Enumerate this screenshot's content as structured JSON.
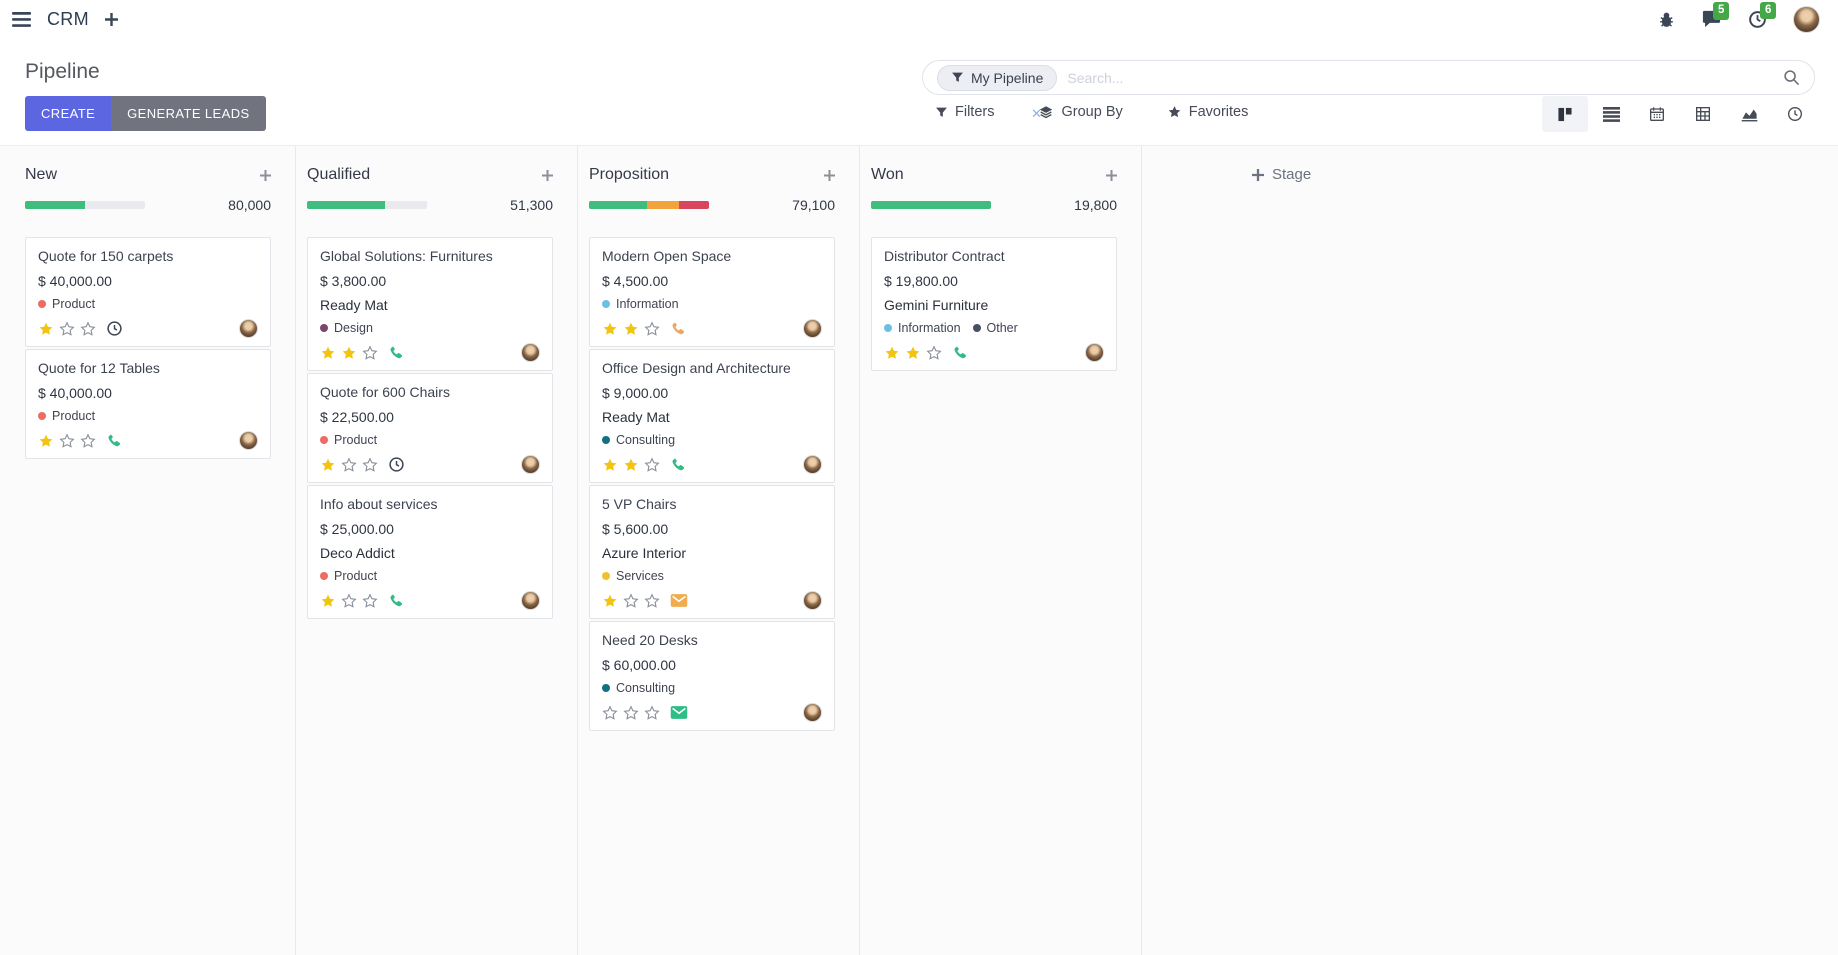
{
  "navbar": {
    "app": "CRM",
    "messages_badge": "5",
    "activities_badge": "6"
  },
  "panel": {
    "title": "Pipeline",
    "create": "CREATE",
    "generate_leads": "GENERATE LEADS",
    "facet": "My Pipeline",
    "search_placeholder": "Search...",
    "filters": "Filters",
    "group_by": "Group By",
    "favorites": "Favorites",
    "add_stage": "Stage"
  },
  "colors": {
    "primary": "#5b66e0",
    "secondary": "#71747e",
    "progress_green": "#3ebd7e",
    "progress_yellow": "#f1a43c",
    "progress_red": "#d9455f",
    "star_gold": "#f2c40f",
    "badge_green": "#44a748"
  },
  "columns": [
    {
      "name": "New",
      "total": "80,000",
      "progress": [
        {
          "color": "#3ebd7e",
          "pct": 50
        }
      ],
      "cards": [
        {
          "title": "Quote for 150 carpets",
          "amount": "$ 40,000.00",
          "partner": null,
          "tags": [
            {
              "label": "Product",
              "color": "#ee6b64"
            }
          ],
          "stars": 1,
          "activity": "clock"
        },
        {
          "title": "Quote for 12 Tables",
          "amount": "$ 40,000.00",
          "partner": null,
          "tags": [
            {
              "label": "Product",
              "color": "#ee6b64"
            }
          ],
          "stars": 1,
          "activity": "phone-green"
        }
      ]
    },
    {
      "name": "Qualified",
      "total": "51,300",
      "progress": [
        {
          "color": "#3ebd7e",
          "pct": 65
        }
      ],
      "cards": [
        {
          "title": "Global Solutions: Furnitures",
          "amount": "$ 3,800.00",
          "partner": "Ready Mat",
          "tags": [
            {
              "label": "Design",
              "color": "#7a466b"
            }
          ],
          "stars": 2,
          "activity": "phone-green"
        },
        {
          "title": "Quote for 600 Chairs",
          "amount": "$ 22,500.00",
          "partner": null,
          "tags": [
            {
              "label": "Product",
              "color": "#ee6b64"
            }
          ],
          "stars": 1,
          "activity": "clock"
        },
        {
          "title": "Info about services",
          "amount": "$ 25,000.00",
          "partner": "Deco Addict",
          "tags": [
            {
              "label": "Product",
              "color": "#ee6b64"
            }
          ],
          "stars": 1,
          "activity": "phone-green"
        }
      ]
    },
    {
      "name": "Proposition",
      "total": "79,100",
      "progress": [
        {
          "color": "#3ebd7e",
          "pct": 48
        },
        {
          "color": "#f1a43c",
          "pct": 27
        },
        {
          "color": "#d9455f",
          "pct": 25
        }
      ],
      "cards": [
        {
          "title": "Modern Open Space",
          "amount": "$ 4,500.00",
          "partner": null,
          "tags": [
            {
              "label": "Information",
              "color": "#6cbfe4"
            }
          ],
          "stars": 2,
          "activity": "phone-orange"
        },
        {
          "title": "Office Design and Architecture",
          "amount": "$ 9,000.00",
          "partner": "Ready Mat",
          "tags": [
            {
              "label": "Consulting",
              "color": "#136f83"
            }
          ],
          "stars": 2,
          "activity": "phone-green"
        },
        {
          "title": "5 VP Chairs",
          "amount": "$ 5,600.00",
          "partner": "Azure Interior",
          "tags": [
            {
              "label": "Services",
              "color": "#efc131"
            }
          ],
          "stars": 1,
          "activity": "mail-orange"
        },
        {
          "title": "Need 20 Desks",
          "amount": "$ 60,000.00",
          "partner": null,
          "tags": [
            {
              "label": "Consulting",
              "color": "#136f83"
            }
          ],
          "stars": 0,
          "activity": "mail-green"
        }
      ]
    },
    {
      "name": "Won",
      "total": "19,800",
      "progress": [
        {
          "color": "#3ebd7e",
          "pct": 100
        }
      ],
      "cards": [
        {
          "title": "Distributor Contract",
          "amount": "$ 19,800.00",
          "partner": "Gemini Furniture",
          "tags": [
            {
              "label": "Information",
              "color": "#6cbfe4"
            },
            {
              "label": "Other",
              "color": "#475063"
            }
          ],
          "stars": 2,
          "activity": "phone-green"
        }
      ]
    }
  ]
}
